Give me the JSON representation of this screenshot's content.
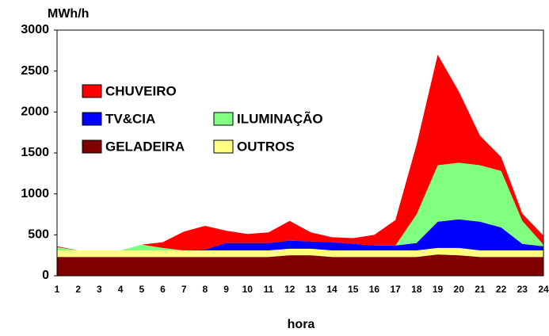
{
  "chart_data": {
    "type": "stacked_area",
    "y_label": "MWh/h",
    "x_label": "hora",
    "categories": [
      "1",
      "2",
      "3",
      "4",
      "5",
      "6",
      "7",
      "8",
      "9",
      "10",
      "11",
      "12",
      "13",
      "14",
      "15",
      "16",
      "17",
      "18",
      "19",
      "20",
      "21",
      "22",
      "23",
      "24"
    ],
    "series": [
      {
        "name": "GELADEIRA",
        "color": "#800000",
        "values": [
          230,
          230,
          230,
          230,
          230,
          230,
          230,
          230,
          230,
          230,
          230,
          250,
          250,
          230,
          230,
          230,
          230,
          230,
          260,
          250,
          230,
          230,
          230,
          230
        ]
      },
      {
        "name": "OUTROS",
        "color": "#ffff80",
        "values": [
          80,
          80,
          80,
          80,
          80,
          80,
          80,
          80,
          80,
          80,
          80,
          80,
          80,
          80,
          80,
          80,
          80,
          80,
          80,
          90,
          80,
          80,
          80,
          80
        ]
      },
      {
        "name": "TV&CIA",
        "color": "#0000ff",
        "values": [
          0,
          0,
          0,
          0,
          0,
          0,
          0,
          10,
          90,
          90,
          90,
          100,
          90,
          100,
          80,
          60,
          60,
          90,
          320,
          350,
          350,
          280,
          80,
          50
        ]
      },
      {
        "name": "ILUMINAÇÃO",
        "color": "#80ff80",
        "values": [
          40,
          0,
          0,
          0,
          70,
          30,
          0,
          0,
          0,
          0,
          0,
          0,
          0,
          0,
          0,
          0,
          0,
          350,
          690,
          690,
          690,
          690,
          280,
          20
        ]
      },
      {
        "name": "CHUVEIRO",
        "color": "#ff0000",
        "values": [
          10,
          0,
          0,
          0,
          0,
          70,
          230,
          290,
          150,
          110,
          130,
          240,
          110,
          60,
          70,
          130,
          310,
          850,
          1350,
          870,
          360,
          170,
          90,
          110
        ]
      }
    ],
    "ylim": [
      0,
      3000
    ],
    "yticks": [
      0,
      500,
      1000,
      1500,
      2000,
      2500,
      3000
    ],
    "grid": false
  }
}
